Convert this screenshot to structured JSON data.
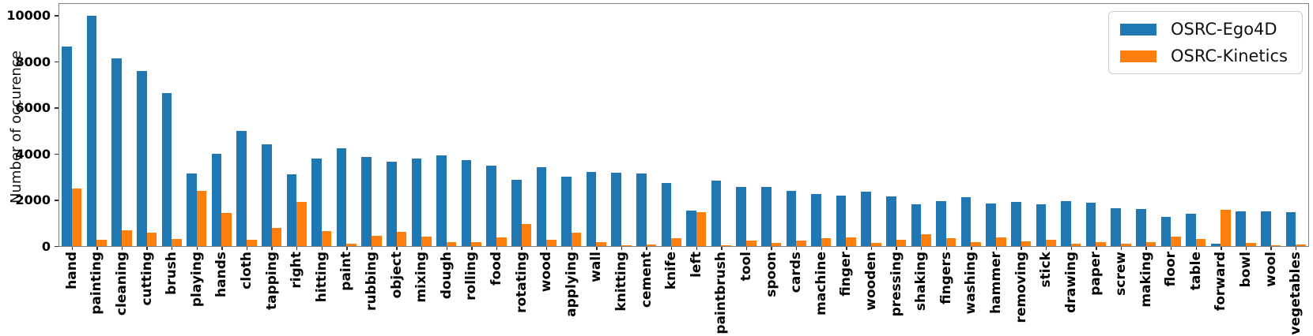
{
  "chart_data": {
    "type": "bar",
    "title": "",
    "xlabel": "",
    "ylabel": "Number of occurence",
    "ylim": [
      0,
      10500
    ],
    "yticks": [
      0,
      2000,
      4000,
      6000,
      8000,
      10000
    ],
    "grid": false,
    "legend_position": "upper right",
    "categories": [
      "hand",
      "painting",
      "cleaning",
      "cutting",
      "brush",
      "playing",
      "hands",
      "cloth",
      "tapping",
      "right",
      "hitting",
      "paint",
      "rubbing",
      "object",
      "mixing",
      "dough",
      "rolling",
      "food",
      "rotating",
      "wood",
      "applying",
      "wall",
      "knitting",
      "cement",
      "knife",
      "left",
      "paintbrush",
      "tool",
      "spoon",
      "cards",
      "machine",
      "finger",
      "wooden",
      "pressing",
      "shaking",
      "fingers",
      "washing",
      "hammer",
      "removing",
      "stick",
      "drawing",
      "paper",
      "screw",
      "making",
      "floor",
      "table",
      "forward",
      "bowl",
      "wool",
      "vegetables"
    ],
    "series": [
      {
        "name": "OSRC-Ego4D",
        "color": "#1f77b4",
        "values": [
          8650,
          10000,
          8150,
          7600,
          6650,
          3150,
          4000,
          5000,
          4400,
          3100,
          3780,
          4230,
          3870,
          3660,
          3800,
          3930,
          3720,
          3480,
          2880,
          3430,
          3010,
          3230,
          3170,
          3130,
          2740,
          1530,
          2840,
          2550,
          2570,
          2400,
          2250,
          2200,
          2370,
          2160,
          1800,
          1950,
          2130,
          1860,
          1930,
          1820,
          1960,
          1880,
          1650,
          1600,
          1280,
          1400,
          90,
          1500,
          1520,
          1480
        ]
      },
      {
        "name": "OSRC-Kinetics",
        "color": "#ff7f0e",
        "values": [
          2500,
          270,
          700,
          580,
          300,
          2400,
          1430,
          280,
          780,
          1910,
          650,
          110,
          450,
          620,
          400,
          180,
          170,
          370,
          950,
          280,
          580,
          170,
          40,
          70,
          350,
          1470,
          50,
          230,
          140,
          230,
          330,
          370,
          140,
          290,
          500,
          330,
          170,
          390,
          200,
          290,
          100,
          170,
          100,
          160,
          420,
          300,
          1590,
          140,
          50,
          80
        ]
      }
    ]
  }
}
